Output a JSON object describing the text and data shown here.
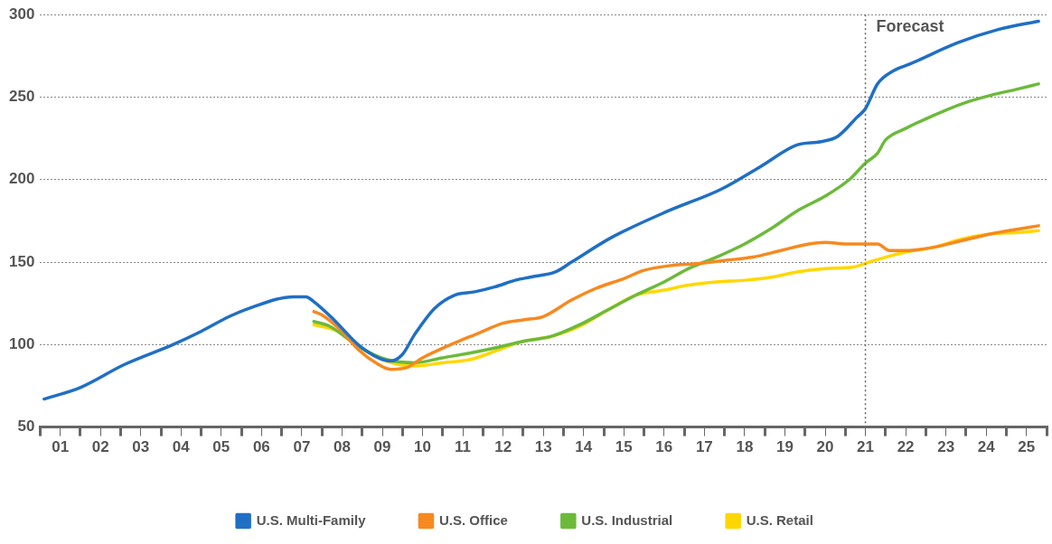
{
  "chart_data": {
    "type": "line",
    "xlim": [
      0.5,
      25.5
    ],
    "xticks": [
      {
        "value": 0.5,
        "label": null
      },
      {
        "value": 1,
        "label": "01"
      },
      {
        "value": 1.5,
        "label": null
      },
      {
        "value": 2,
        "label": "02"
      },
      {
        "value": 2.5,
        "label": null
      },
      {
        "value": 3,
        "label": "03"
      },
      {
        "value": 3.5,
        "label": null
      },
      {
        "value": 4,
        "label": "04"
      },
      {
        "value": 4.5,
        "label": null
      },
      {
        "value": 5,
        "label": "05"
      },
      {
        "value": 5.5,
        "label": null
      },
      {
        "value": 6,
        "label": "06"
      },
      {
        "value": 6.5,
        "label": null
      },
      {
        "value": 7,
        "label": "07"
      },
      {
        "value": 7.5,
        "label": null
      },
      {
        "value": 8,
        "label": "08"
      },
      {
        "value": 8.5,
        "label": null
      },
      {
        "value": 9,
        "label": "09"
      },
      {
        "value": 9.5,
        "label": null
      },
      {
        "value": 10,
        "label": "10"
      },
      {
        "value": 10.5,
        "label": null
      },
      {
        "value": 11,
        "label": "11"
      },
      {
        "value": 11.5,
        "label": null
      },
      {
        "value": 12,
        "label": "12"
      },
      {
        "value": 12.5,
        "label": null
      },
      {
        "value": 13,
        "label": "13"
      },
      {
        "value": 13.5,
        "label": null
      },
      {
        "value": 14,
        "label": "14"
      },
      {
        "value": 14.5,
        "label": null
      },
      {
        "value": 15,
        "label": "15"
      },
      {
        "value": 15.5,
        "label": null
      },
      {
        "value": 16,
        "label": "16"
      },
      {
        "value": 16.5,
        "label": null
      },
      {
        "value": 17,
        "label": "17"
      },
      {
        "value": 17.5,
        "label": null
      },
      {
        "value": 18,
        "label": "18"
      },
      {
        "value": 18.5,
        "label": null
      },
      {
        "value": 19,
        "label": "19"
      },
      {
        "value": 19.5,
        "label": null
      },
      {
        "value": 20,
        "label": "20"
      },
      {
        "value": 20.5,
        "label": null
      },
      {
        "value": 21,
        "label": "21"
      },
      {
        "value": 21.5,
        "label": null
      },
      {
        "value": 22,
        "label": "22"
      },
      {
        "value": 22.5,
        "label": null
      },
      {
        "value": 23,
        "label": "23"
      },
      {
        "value": 23.5,
        "label": null
      },
      {
        "value": 24,
        "label": "24"
      },
      {
        "value": 24.5,
        "label": null
      },
      {
        "value": 25,
        "label": "25"
      },
      {
        "value": 25.5,
        "label": null
      }
    ],
    "ylim": [
      50,
      300
    ],
    "yticks": [
      50,
      100,
      150,
      200,
      250,
      300
    ],
    "grid": "y",
    "legend": "bottom",
    "marker": "none",
    "line_style": "solid",
    "ref_lines": [
      {
        "axis": "x",
        "value": 21,
        "label": "Forecast",
        "line_style": "dotted",
        "color": "#666666"
      }
    ],
    "series": [
      {
        "name": "U.S. Multi-Family",
        "color": "#1f6fc5",
        "x": [
          0.6,
          1.5,
          2.6,
          3.8,
          4.5,
          5.2,
          5.7,
          6.8,
          7.1,
          7.3,
          7.8,
          8.4,
          8.9,
          9.2,
          9.5,
          9.8,
          10.3,
          10.8,
          11.3,
          11.8,
          12.3,
          12.7,
          13.3,
          13.7,
          14.7,
          16.1,
          17.4,
          18.4,
          19.3,
          19.9,
          20.3,
          20.8,
          21.0,
          21.3,
          21.7,
          22.1,
          23.3,
          24.3,
          25.3
        ],
        "values": [
          67,
          74,
          88,
          100,
          108,
          117,
          122,
          129,
          129,
          126,
          115,
          100,
          92,
          90,
          94,
          106,
          122,
          130,
          132,
          135,
          139,
          141,
          144,
          150,
          165,
          181,
          194,
          208,
          221,
          223,
          226,
          238,
          243,
          258,
          266,
          270,
          283,
          291,
          296
        ]
      },
      {
        "name": "U.S. Office",
        "color": "#f7891f",
        "x": [
          7.3,
          7.5,
          8.0,
          8.4,
          8.9,
          9.2,
          9.6,
          10.0,
          10.7,
          11.4,
          12.0,
          12.5,
          13.0,
          13.7,
          14.3,
          15.0,
          15.5,
          16.2,
          16.8,
          17.5,
          18.2,
          18.9,
          19.6,
          20.0,
          20.5,
          21.0,
          21.3,
          21.6,
          22.0,
          22.7,
          23.4,
          24.1,
          24.8,
          25.3
        ],
        "values": [
          120,
          118,
          108,
          97,
          88,
          85,
          86,
          92,
          100,
          107,
          113,
          115,
          117,
          127,
          134,
          140,
          145,
          148,
          149,
          151,
          153,
          157,
          161,
          162,
          161,
          161,
          161,
          157,
          157,
          159,
          163,
          167,
          170,
          172
        ]
      },
      {
        "name": "U.S. Industrial",
        "color": "#6cba3a",
        "x": [
          7.3,
          7.7,
          8.4,
          9.1,
          9.8,
          10.5,
          11.2,
          11.8,
          12.5,
          13.2,
          13.9,
          14.6,
          15.3,
          16.0,
          16.6,
          17.3,
          18.0,
          18.7,
          19.3,
          20.0,
          20.6,
          21.0,
          21.3,
          21.5,
          22.0,
          22.7,
          23.4,
          24.1,
          24.8,
          25.3
        ],
        "values": [
          114,
          111,
          99,
          91,
          89,
          92,
          95,
          98,
          102,
          105,
          112,
          121,
          130,
          138,
          146,
          153,
          161,
          171,
          181,
          190,
          200,
          210,
          216,
          224,
          231,
          239,
          246,
          251,
          255,
          258
        ]
      },
      {
        "name": "U.S. Retail",
        "color": "#ffd700",
        "x": [
          7.3,
          7.9,
          8.4,
          9.1,
          9.8,
          10.5,
          11.2,
          11.8,
          12.5,
          13.2,
          13.9,
          14.6,
          15.3,
          16.0,
          16.6,
          17.3,
          18.0,
          18.7,
          19.3,
          20.0,
          20.7,
          21.1,
          21.5,
          22.0,
          22.7,
          23.4,
          24.1,
          24.8,
          25.3
        ],
        "values": [
          112,
          108,
          99,
          90,
          87,
          89,
          91,
          96,
          102,
          105,
          111,
          121,
          130,
          133,
          136,
          138,
          139,
          141,
          144,
          146,
          147,
          150,
          153,
          156,
          159,
          164,
          167,
          168,
          169
        ]
      }
    ]
  }
}
